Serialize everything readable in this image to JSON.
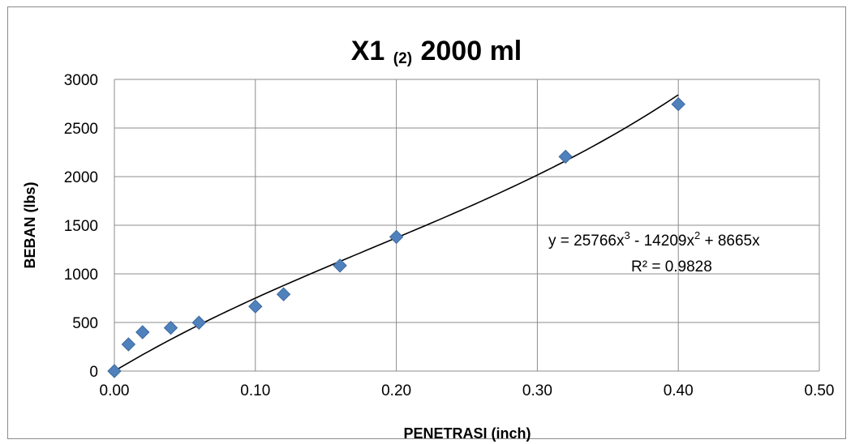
{
  "chart_data": {
    "type": "scatter",
    "title": {
      "main": "X1",
      "sub": "(2)",
      "rest": "2000 ml"
    },
    "xlabel": "PENETRASI (inch)",
    "ylabel": "BEBAN (lbs)",
    "xlim": [
      0,
      0.5
    ],
    "ylim": [
      0,
      3000
    ],
    "x_ticks": [
      "0.00",
      "0.10",
      "0.20",
      "0.30",
      "0.40",
      "0.50"
    ],
    "y_ticks": [
      "0",
      "500",
      "1000",
      "1500",
      "2000",
      "2500",
      "3000"
    ],
    "grid": true,
    "series": [
      {
        "marker": "diamond",
        "color": "#4f81bd",
        "points": [
          {
            "x": 0.0,
            "y": 0
          },
          {
            "x": 0.01,
            "y": 275
          },
          {
            "x": 0.02,
            "y": 400
          },
          {
            "x": 0.04,
            "y": 445
          },
          {
            "x": 0.06,
            "y": 498
          },
          {
            "x": 0.1,
            "y": 665
          },
          {
            "x": 0.12,
            "y": 790
          },
          {
            "x": 0.16,
            "y": 1085
          },
          {
            "x": 0.2,
            "y": 1380
          },
          {
            "x": 0.32,
            "y": 2205
          },
          {
            "x": 0.4,
            "y": 2745
          }
        ]
      }
    ],
    "trendline": {
      "type": "polynomial",
      "order": 3,
      "coefficients": {
        "a3": 25766,
        "a2": -14209,
        "a1": 8665,
        "a0": 0
      },
      "color": "#000000",
      "equation": {
        "lead": "y = 25766x",
        "exp1": "3",
        "mid": " - 14209x",
        "exp2": "2",
        "tail": " + 8665x"
      },
      "r_squared": "R² = 0.9828"
    }
  }
}
